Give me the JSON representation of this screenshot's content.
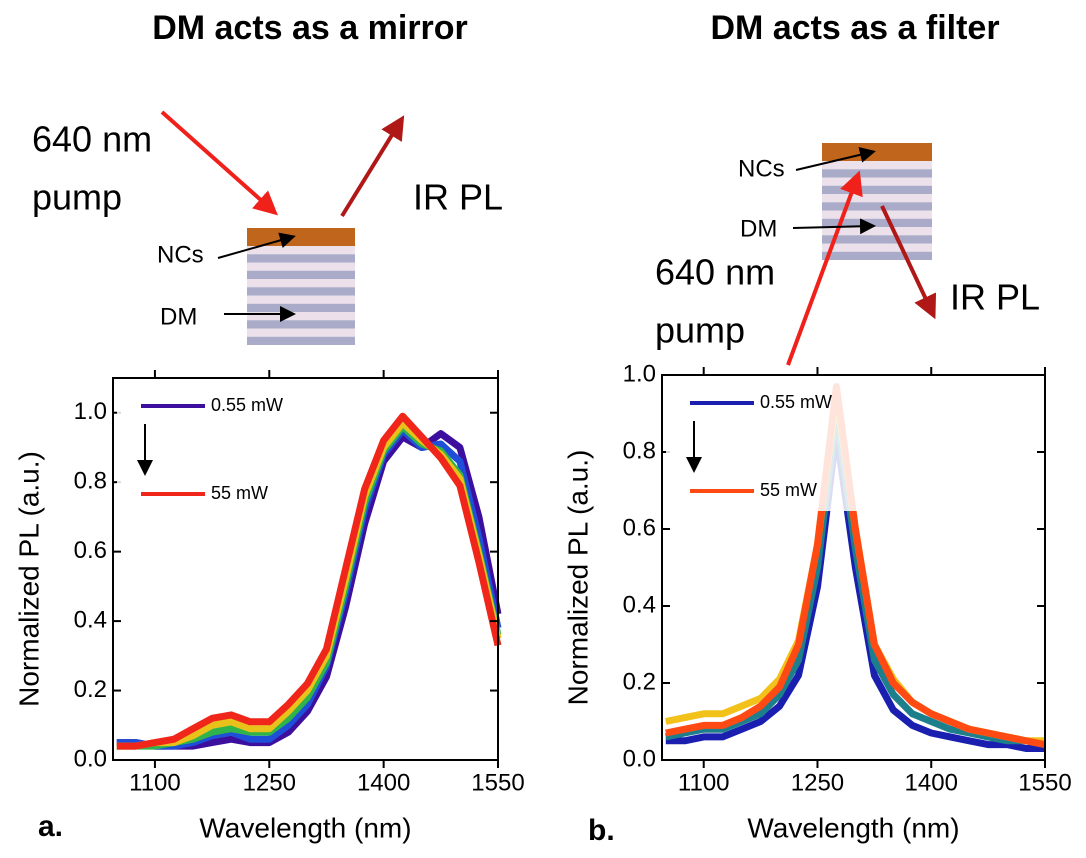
{
  "panels": [
    {
      "title": "DM acts as a mirror",
      "pump_label": [
        "640 nm",
        "pump"
      ],
      "pl_label": "IR PL",
      "nc_label": "NCs",
      "dm_label": "DM",
      "panel_label": "a."
    },
    {
      "title": "DM acts as a filter",
      "pump_label": [
        "640 nm",
        "pump"
      ],
      "pl_label": "IR PL",
      "nc_label": "NCs",
      "dm_label": "DM",
      "panel_label": "b."
    }
  ],
  "chart_data": [
    {
      "type": "line",
      "x_label": "Wavelength (nm)",
      "y_label": "Normalized PL (a.u.)",
      "x": [
        1050,
        1075,
        1100,
        1125,
        1150,
        1175,
        1200,
        1225,
        1250,
        1275,
        1300,
        1325,
        1350,
        1375,
        1400,
        1425,
        1450,
        1475,
        1500,
        1525,
        1550
      ],
      "series": [
        {
          "name": "0.55 mW",
          "color": "#3d0f9e",
          "values": [
            0.05,
            0.05,
            0.04,
            0.04,
            0.04,
            0.05,
            0.06,
            0.05,
            0.05,
            0.08,
            0.14,
            0.24,
            0.44,
            0.68,
            0.86,
            0.93,
            0.9,
            0.94,
            0.9,
            0.7,
            0.42
          ]
        },
        {
          "color": "#1f4fd8",
          "values": [
            0.05,
            0.05,
            0.04,
            0.04,
            0.05,
            0.07,
            0.08,
            0.06,
            0.06,
            0.1,
            0.16,
            0.27,
            0.48,
            0.72,
            0.88,
            0.95,
            0.9,
            0.91,
            0.86,
            0.64,
            0.38
          ]
        },
        {
          "color": "#2fb34a",
          "values": [
            0.04,
            0.04,
            0.04,
            0.05,
            0.06,
            0.08,
            0.09,
            0.08,
            0.08,
            0.12,
            0.18,
            0.28,
            0.5,
            0.74,
            0.89,
            0.96,
            0.91,
            0.89,
            0.82,
            0.6,
            0.36
          ]
        },
        {
          "color": "#e8c21a",
          "values": [
            0.04,
            0.04,
            0.05,
            0.05,
            0.07,
            0.1,
            0.11,
            0.09,
            0.09,
            0.14,
            0.2,
            0.3,
            0.52,
            0.76,
            0.9,
            0.97,
            0.92,
            0.88,
            0.81,
            0.59,
            0.35
          ]
        },
        {
          "name": "55 mW",
          "color": "#f0261a",
          "values": [
            0.04,
            0.04,
            0.05,
            0.06,
            0.09,
            0.12,
            0.13,
            0.11,
            0.11,
            0.16,
            0.22,
            0.32,
            0.55,
            0.78,
            0.92,
            0.99,
            0.93,
            0.87,
            0.79,
            0.57,
            0.33
          ]
        }
      ],
      "xlim": [
        1045,
        1550
      ],
      "ylim": [
        0,
        1.1
      ],
      "xticks": [
        1100,
        1250,
        1400,
        1550
      ],
      "yticks": [
        {
          "value": 0,
          "label": "0.0"
        },
        0.2,
        0.4,
        0.6,
        0.8,
        {
          "value": 1,
          "label": "1.0"
        }
      ],
      "legend": "upper left"
    },
    {
      "type": "line",
      "x_label": "Wavelength (nm)",
      "y_label": "Normalized PL (a.u.)",
      "x": [
        1050,
        1075,
        1100,
        1125,
        1150,
        1175,
        1200,
        1225,
        1250,
        1275,
        1300,
        1325,
        1350,
        1375,
        1400,
        1425,
        1450,
        1475,
        1500,
        1525,
        1550
      ],
      "series": [
        {
          "name": "0.55 mW",
          "color": "#1a1fb0",
          "values": [
            0.05,
            0.05,
            0.06,
            0.06,
            0.08,
            0.1,
            0.14,
            0.22,
            0.45,
            0.85,
            0.5,
            0.22,
            0.13,
            0.09,
            0.07,
            0.06,
            0.05,
            0.04,
            0.04,
            0.03,
            0.03
          ]
        },
        {
          "color": "#1e7f8c",
          "values": [
            0.06,
            0.07,
            0.08,
            0.08,
            0.1,
            0.12,
            0.17,
            0.26,
            0.5,
            0.9,
            0.55,
            0.26,
            0.17,
            0.12,
            0.1,
            0.08,
            0.07,
            0.06,
            0.05,
            0.05,
            0.04
          ]
        },
        {
          "color": "#f2c21b",
          "values": [
            0.1,
            0.11,
            0.12,
            0.12,
            0.14,
            0.16,
            0.21,
            0.31,
            0.56,
            0.95,
            0.6,
            0.3,
            0.21,
            0.15,
            0.12,
            0.1,
            0.08,
            0.07,
            0.06,
            0.05,
            0.05
          ]
        },
        {
          "name": "55 mW",
          "color": "#ff4a14",
          "values": [
            0.07,
            0.08,
            0.09,
            0.09,
            0.11,
            0.14,
            0.19,
            0.3,
            0.56,
            0.97,
            0.6,
            0.3,
            0.2,
            0.15,
            0.12,
            0.1,
            0.08,
            0.07,
            0.06,
            0.05,
            0.04
          ]
        }
      ],
      "xlim": [
        1045,
        1550
      ],
      "ylim": [
        0,
        1.0
      ],
      "xticks": [
        1100,
        1250,
        1400,
        1550
      ],
      "yticks": [
        {
          "value": 0,
          "label": "0.0"
        },
        0.2,
        0.4,
        0.6,
        0.8,
        {
          "value": 1,
          "label": "1.0"
        }
      ],
      "legend": "upper left"
    }
  ]
}
